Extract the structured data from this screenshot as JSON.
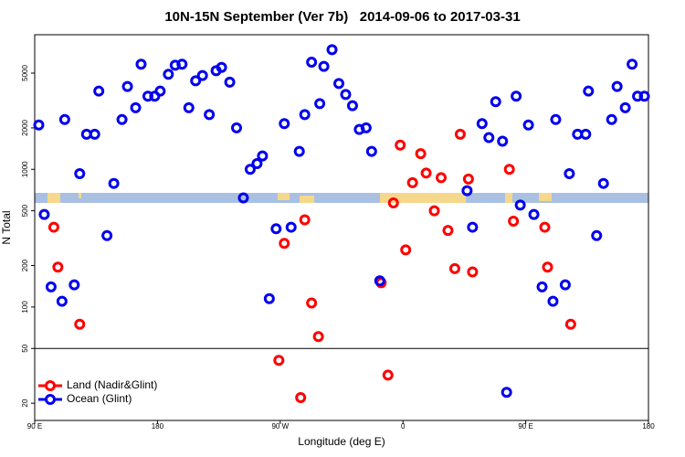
{
  "chart_data": {
    "type": "scatter",
    "title": "10N-15N September (Ver 7b)   2014-09-06 to 2017-03-31",
    "x_label": "Longitude (deg E)",
    "y_label": "N Total",
    "log_y": true,
    "xlim": [
      -270,
      180
    ],
    "ylim": [
      15,
      9500
    ],
    "xticks": [
      {
        "value": -270,
        "label": "90 E"
      },
      {
        "value": -180,
        "label": "180"
      },
      {
        "value": -90,
        "label": "90 W"
      },
      0,
      {
        "value": 90,
        "label": "90 E"
      },
      {
        "value": 180,
        "label": "180"
      }
    ],
    "yticks": [
      20,
      50,
      100,
      200,
      500,
      1000,
      2000,
      5000
    ],
    "reference_line": 50,
    "legend_position": "bottom-left",
    "series": [
      {
        "name": "Land (Nadir&Glint)",
        "color": "#ff0000",
        "x": [
          -256,
          -253,
          -237,
          -91,
          -87,
          -72,
          -67,
          -62,
          -75,
          -16,
          -11,
          -7,
          -2,
          2,
          7,
          13,
          17,
          23,
          28,
          33,
          38,
          42,
          48,
          51,
          78,
          81,
          104,
          106,
          123
        ],
        "values": [
          380,
          195,
          75,
          41,
          290,
          430,
          107,
          61,
          22,
          150,
          32,
          570,
          1500,
          260,
          800,
          1300,
          940,
          500,
          870,
          360,
          190,
          1800,
          850,
          180,
          1000,
          420,
          380,
          195,
          75
        ]
      },
      {
        "name": "Ocean (Glint)",
        "color": "#0000ee",
        "x": [
          -267,
          -263,
          -258,
          -250,
          -248,
          -241,
          -237,
          -232,
          -226,
          -223,
          -217,
          -212,
          -206,
          -202,
          -196,
          -192,
          -187,
          -182,
          -178,
          -172,
          -167,
          -162,
          -157,
          -152,
          -147,
          -142,
          -137,
          -133,
          -127,
          -122,
          -117,
          -112,
          -107,
          -103,
          -98,
          -93,
          -87,
          -82,
          -76,
          -72,
          -67,
          -61,
          -58,
          -52,
          -47,
          -42,
          -37,
          -32,
          -27,
          -23,
          -17,
          47,
          51,
          58,
          63,
          68,
          73,
          76,
          83,
          86,
          92,
          96,
          102,
          110,
          112,
          119,
          122,
          128,
          134,
          136,
          142,
          147,
          153,
          157,
          163,
          168,
          172,
          177
        ],
        "values": [
          2100,
          470,
          140,
          110,
          2300,
          145,
          930,
          1800,
          1800,
          3700,
          330,
          790,
          2300,
          4000,
          2800,
          5800,
          3400,
          3400,
          3700,
          4900,
          5700,
          5800,
          2800,
          4400,
          4800,
          2500,
          5200,
          5500,
          4300,
          2000,
          620,
          1000,
          1100,
          1250,
          115,
          370,
          2150,
          380,
          1350,
          2500,
          6000,
          3000,
          5600,
          7400,
          4200,
          3500,
          2900,
          1950,
          2000,
          1350,
          155,
          700,
          380,
          2150,
          1700,
          3100,
          1600,
          24,
          3400,
          550,
          2100,
          470,
          140,
          110,
          2300,
          145,
          930,
          1800,
          1800,
          3700,
          330,
          790,
          2300,
          4000,
          2800,
          5800,
          3400,
          3400
        ]
      }
    ]
  }
}
